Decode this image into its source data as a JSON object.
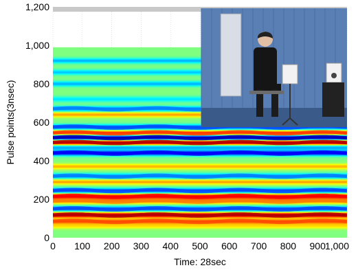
{
  "chart_data": {
    "type": "heatmap",
    "xlabel": "Time: 28sec",
    "ylabel": "Pulse points(3nsec)",
    "xlim": [
      0,
      1000
    ],
    "ylim": [
      0,
      1200
    ],
    "x_ticks": [
      "0",
      "100",
      "200",
      "300",
      "400",
      "500",
      "600",
      "700",
      "800",
      "900",
      "1,000"
    ],
    "y_ticks": [
      "0",
      "200",
      "400",
      "600",
      "800",
      "1,000",
      "1,200"
    ],
    "data_extent_y": [
      0,
      990
    ],
    "colormap": "jet",
    "bands": [
      {
        "y": 60,
        "value": 0.65
      },
      {
        "y": 85,
        "value": 0.8
      },
      {
        "y": 118,
        "value": 0.95
      },
      {
        "y": 150,
        "value": 0.2
      },
      {
        "y": 190,
        "value": 0.75
      },
      {
        "y": 215,
        "value": 0.88
      },
      {
        "y": 245,
        "value": 0.2
      },
      {
        "y": 290,
        "value": 0.72
      },
      {
        "y": 320,
        "value": 0.25
      },
      {
        "y": 370,
        "value": 0.7
      },
      {
        "y": 440,
        "value": 0.12
      },
      {
        "y": 470,
        "value": 0.28
      },
      {
        "y": 495,
        "value": 0.95
      },
      {
        "y": 520,
        "value": 0.05
      },
      {
        "y": 545,
        "value": 0.82
      },
      {
        "y": 575,
        "value": 0.2
      },
      {
        "y": 640,
        "value": 0.72
      },
      {
        "y": 670,
        "value": 0.25
      },
      {
        "y": 720,
        "value": 0.35
      },
      {
        "y": 800,
        "value": 0.3
      },
      {
        "y": 860,
        "value": 0.32
      },
      {
        "y": 920,
        "value": 0.3
      }
    ]
  },
  "inset_photo": {
    "subject": "person seated in anechoic chamber with radar equipment",
    "wall_color": "#5a7fb5",
    "floor_color": "#3a5a8a"
  },
  "colors": {
    "background_gray": "#c8c8c8",
    "empty_area": "#ffffff"
  }
}
